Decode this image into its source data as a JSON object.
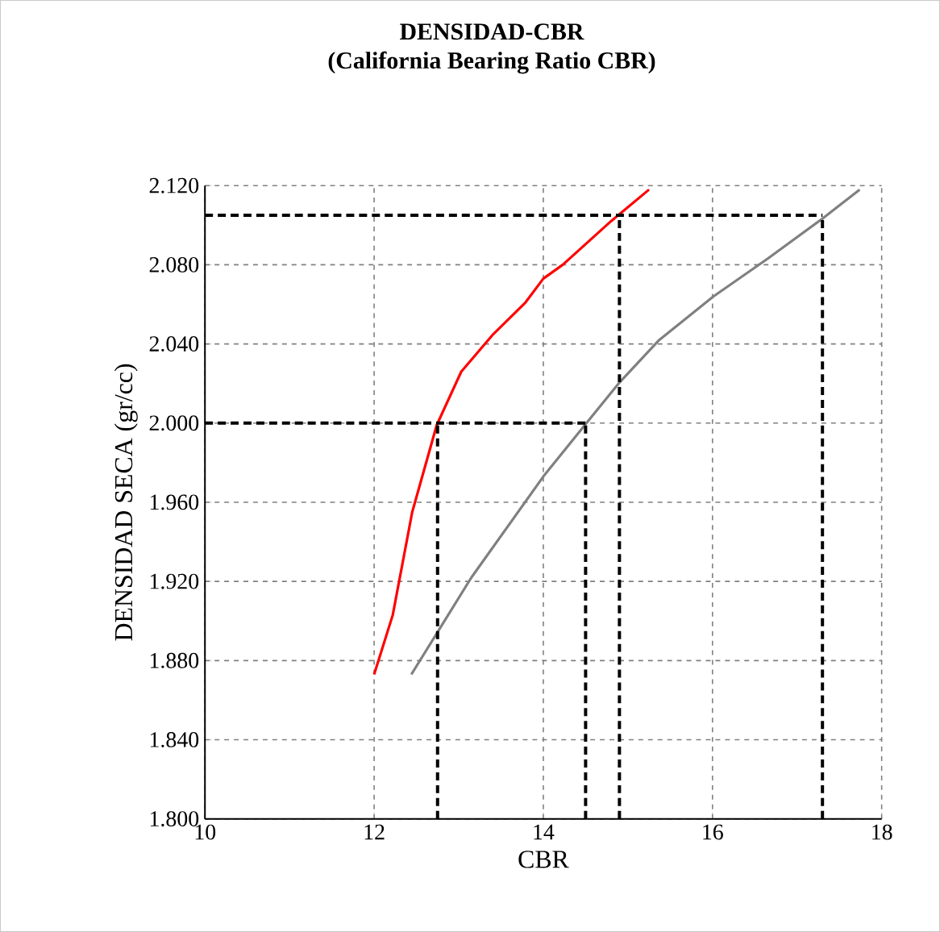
{
  "chart_data": {
    "type": "line",
    "title": "DENSIDAD-CBR",
    "subtitle": "(California Bearing Ratio CBR)",
    "xlabel": "CBR",
    "ylabel": "DENSIDAD SECA  (gr/cc)",
    "xlim": [
      10,
      18
    ],
    "xticks": [
      10,
      12,
      14,
      16,
      18
    ],
    "ylim": [
      1.8,
      2.12
    ],
    "yticks": [
      {
        "value": 1.8,
        "label": "1.800"
      },
      {
        "value": 1.84,
        "label": "1.840"
      },
      {
        "value": 1.88,
        "label": "1.880"
      },
      {
        "value": 1.92,
        "label": "1.920"
      },
      {
        "value": 1.96,
        "label": "1.960"
      },
      {
        "value": 2.0,
        "label": "2.000"
      },
      {
        "value": 2.04,
        "label": "2.040"
      },
      {
        "value": 2.08,
        "label": "2.080"
      },
      {
        "value": 2.12,
        "label": "2.120"
      }
    ],
    "grid": true,
    "marker": "none",
    "series": [
      {
        "color": "#ff0000",
        "line_style": "solid",
        "x": [
          12.0,
          12.22,
          12.45,
          12.74,
          13.03,
          13.41,
          13.79,
          14.0,
          14.23,
          14.8,
          15.25
        ],
        "values": [
          1.873,
          1.903,
          1.955,
          1.999,
          2.026,
          2.045,
          2.061,
          2.073,
          2.08,
          2.102,
          2.118
        ]
      },
      {
        "color": "#808080",
        "line_style": "solid",
        "x": [
          12.44,
          13.15,
          14.0,
          14.51,
          14.89,
          15.37,
          16.01,
          16.65,
          17.29,
          17.74
        ],
        "values": [
          1.873,
          1.922,
          1.973,
          2.0,
          2.02,
          2.042,
          2.064,
          2.083,
          2.103,
          2.118
        ]
      },
      {
        "color": "#000000",
        "line_style": "dashed",
        "x": [
          10,
          14.5
        ],
        "values": [
          2.0,
          2.0
        ]
      },
      {
        "color": "#000000",
        "line_style": "dashed",
        "x": [
          12.75,
          12.75
        ],
        "values": [
          1.8,
          2.0
        ]
      },
      {
        "color": "#000000",
        "line_style": "dashed",
        "x": [
          14.5,
          14.5
        ],
        "values": [
          1.8,
          2.0
        ]
      },
      {
        "color": "#000000",
        "line_style": "dashed",
        "x": [
          10,
          17.3
        ],
        "values": [
          2.105,
          2.105
        ]
      },
      {
        "color": "#000000",
        "line_style": "dashed",
        "x": [
          14.9,
          14.9
        ],
        "values": [
          1.8,
          2.105
        ]
      },
      {
        "color": "#000000",
        "line_style": "dashed",
        "x": [
          17.3,
          17.3
        ],
        "values": [
          1.8,
          2.105
        ]
      }
    ]
  }
}
